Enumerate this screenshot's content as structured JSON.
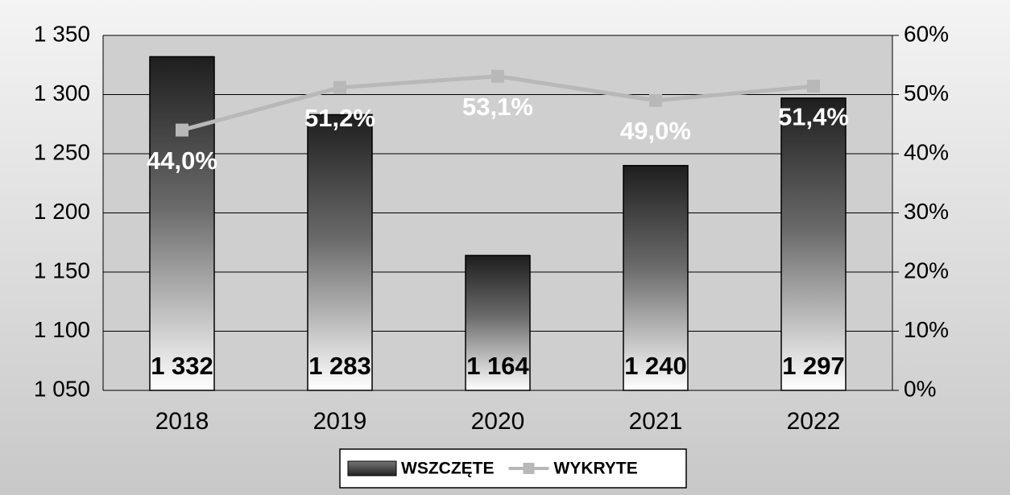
{
  "chart_data": {
    "type": "bar",
    "categories": [
      "2018",
      "2019",
      "2020",
      "2021",
      "2022"
    ],
    "series": [
      {
        "name": "WSZCZĘTE",
        "type": "bar",
        "color": "#2a2a2a",
        "values": [
          1332,
          1283,
          1164,
          1240,
          1297
        ],
        "value_labels": [
          "1 332",
          "1 283",
          "1 164",
          "1 240",
          "1 297"
        ]
      },
      {
        "name": "WYKRYTE",
        "type": "line",
        "axis": "y2",
        "color": "#b8b8b8",
        "values": [
          44.0,
          51.2,
          53.1,
          49.0,
          51.4
        ],
        "value_labels": [
          "44,0%",
          "51,2%",
          "53,1%",
          "49,0%",
          "51,4%"
        ]
      }
    ],
    "ylim": [
      1050,
      1350
    ],
    "yticks": [
      {
        "value": 1050,
        "label": "1 050"
      },
      {
        "value": 1100,
        "label": "1 100"
      },
      {
        "value": 1150,
        "label": "1 150"
      },
      {
        "value": 1200,
        "label": "1 200"
      },
      {
        "value": 1250,
        "label": "1 250"
      },
      {
        "value": 1300,
        "label": "1 300"
      },
      {
        "value": 1350,
        "label": "1 350"
      }
    ],
    "y2lim": [
      0,
      60
    ],
    "y2ticks": [
      {
        "value": 0,
        "label": "0%"
      },
      {
        "value": 10,
        "label": "10%"
      },
      {
        "value": 20,
        "label": "20%"
      },
      {
        "value": 30,
        "label": "30%"
      },
      {
        "value": 40,
        "label": "40%"
      },
      {
        "value": 50,
        "label": "50%"
      },
      {
        "value": 60,
        "label": "60%"
      }
    ],
    "grid": true,
    "legend": "bottom"
  }
}
